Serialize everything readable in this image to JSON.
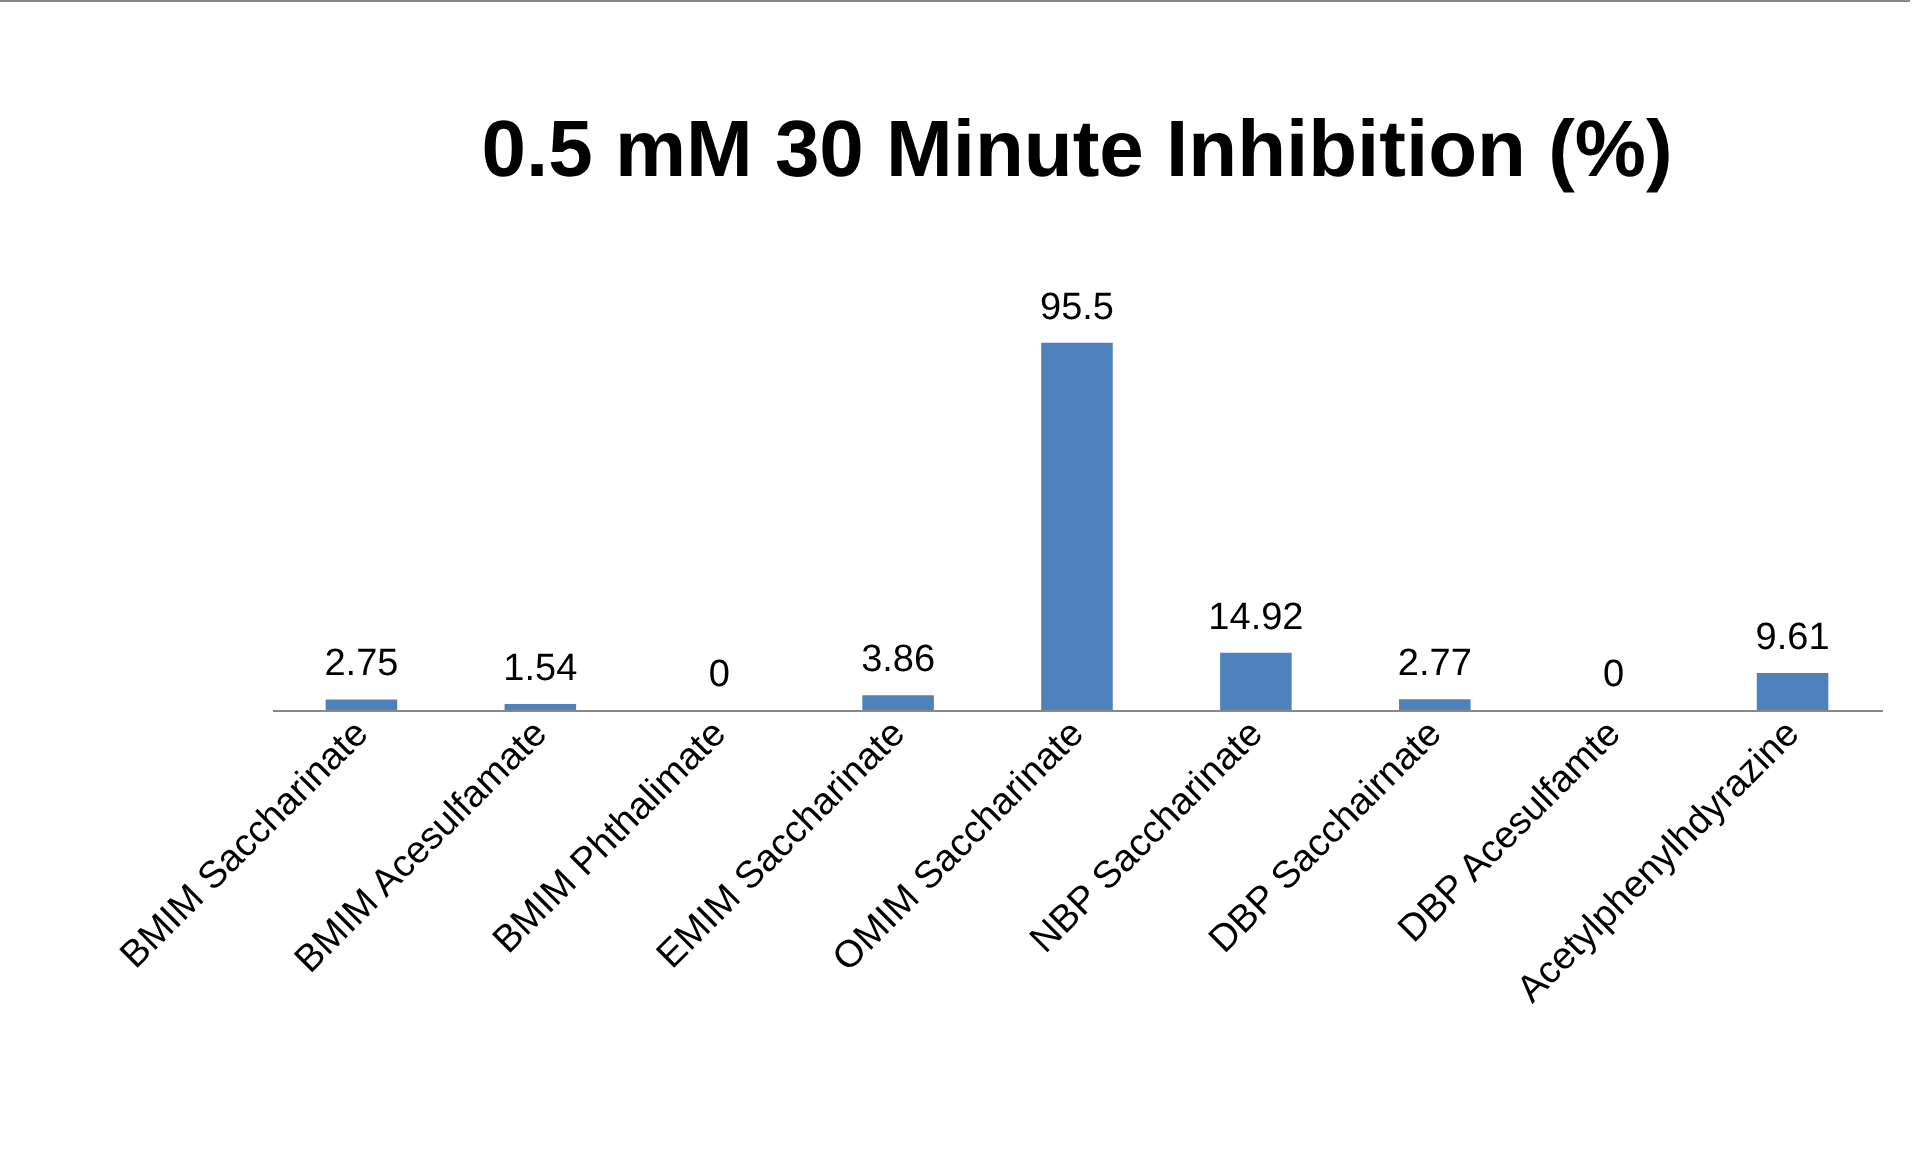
{
  "chart_data": {
    "type": "bar",
    "title": "0.5 mM 30 Minute Inhibition (%)",
    "categories": [
      "BMIM Saccharinate",
      "BMIM Acesulfamate",
      "BMIM Phthalimate",
      "EMIM Saccharinate",
      "OMIM Saccharinate",
      "NBP Saccharinate",
      "DBP Sacchairnate",
      "DBP Acesulfamte",
      "Acetylphenylhdyrazine"
    ],
    "values": [
      2.75,
      1.54,
      0,
      3.86,
      95.5,
      14.92,
      2.77,
      0,
      9.61
    ],
    "color": "#4f81bd",
    "data_labels": true
  }
}
